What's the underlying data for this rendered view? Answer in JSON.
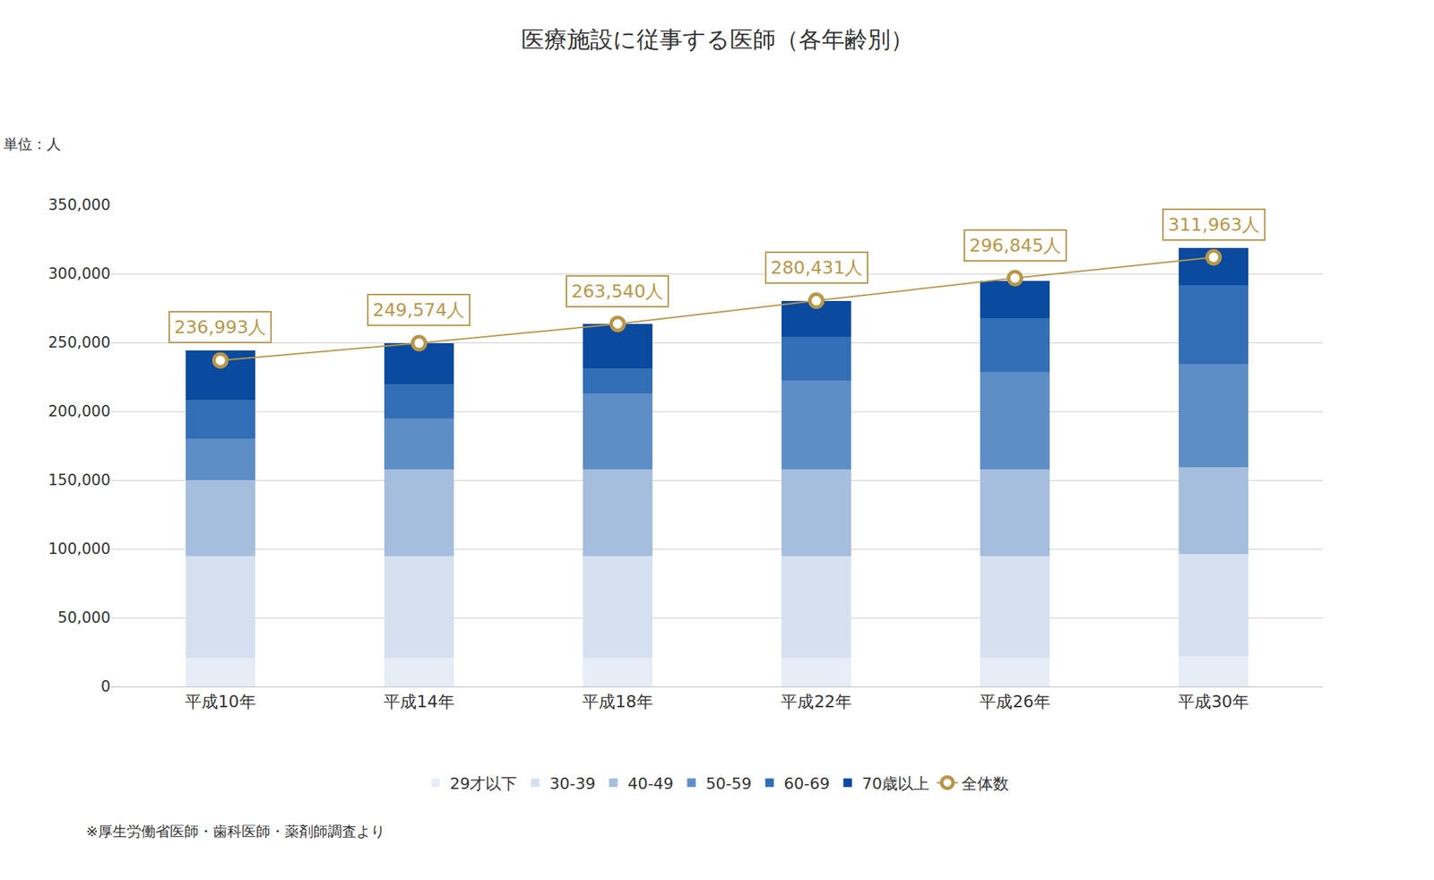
{
  "chart_data": {
    "type": "bar",
    "title": "医療施設に従事する医師（各年齢別）",
    "ylabel": "単位：人",
    "annotations": [
      "※厚生労働省医師・歯科医師・薬剤師調査より"
    ],
    "categories": [
      "平成10年",
      "平成14年",
      "平成18年",
      "平成22年",
      "平成26年",
      "平成30年"
    ],
    "stacked": true,
    "grid": true,
    "legend": "bottom",
    "ylim": [
      0,
      350000
    ],
    "yticks": [
      0,
      {
        "value": 50000,
        "label": "50,000"
      },
      {
        "value": 100000,
        "label": "100,000"
      },
      {
        "value": 150000,
        "label": "150,000"
      },
      {
        "value": 200000,
        "label": "200,000"
      },
      {
        "value": 250000,
        "label": "250,000"
      },
      {
        "value": 300000,
        "label": "300,000"
      },
      {
        "value": 350000,
        "label": "350,000"
      }
    ],
    "series": [
      {
        "name": "29才以下",
        "color": "#e6edf6",
        "values": [
          21000,
          21000,
          21000,
          21000,
          21000,
          22000
        ]
      },
      {
        "name": "30-39",
        "color": "#d5e1f0",
        "values": [
          74000,
          74000,
          74000,
          74000,
          74000,
          74300
        ]
      },
      {
        "name": "40-49",
        "color": "#a6bedd",
        "values": [
          55000,
          63000,
          63000,
          63000,
          63000,
          63100
        ]
      },
      {
        "name": "50-59",
        "color": "#5e8ec6",
        "values": [
          30000,
          36600,
          55200,
          64500,
          70400,
          75000
        ]
      },
      {
        "name": "60-69",
        "color": "#336fb6",
        "values": [
          28500,
          25200,
          17900,
          31800,
          39200,
          57100
        ]
      },
      {
        "name": "70歳以上",
        "color": "#0a4a9f",
        "values": [
          35700,
          29900,
          32500,
          25900,
          27300,
          27300
        ]
      },
      {
        "name": "全体数",
        "type": "line",
        "color": "#b8974a",
        "marker": "circle",
        "data_labels": true,
        "values": [
          236993,
          249574,
          263540,
          280431,
          296845,
          311963
        ],
        "value_labels": [
          "236,993人",
          "249,574人",
          "263,540人",
          "280,431人",
          "296,845人",
          "311,963人"
        ]
      }
    ]
  }
}
